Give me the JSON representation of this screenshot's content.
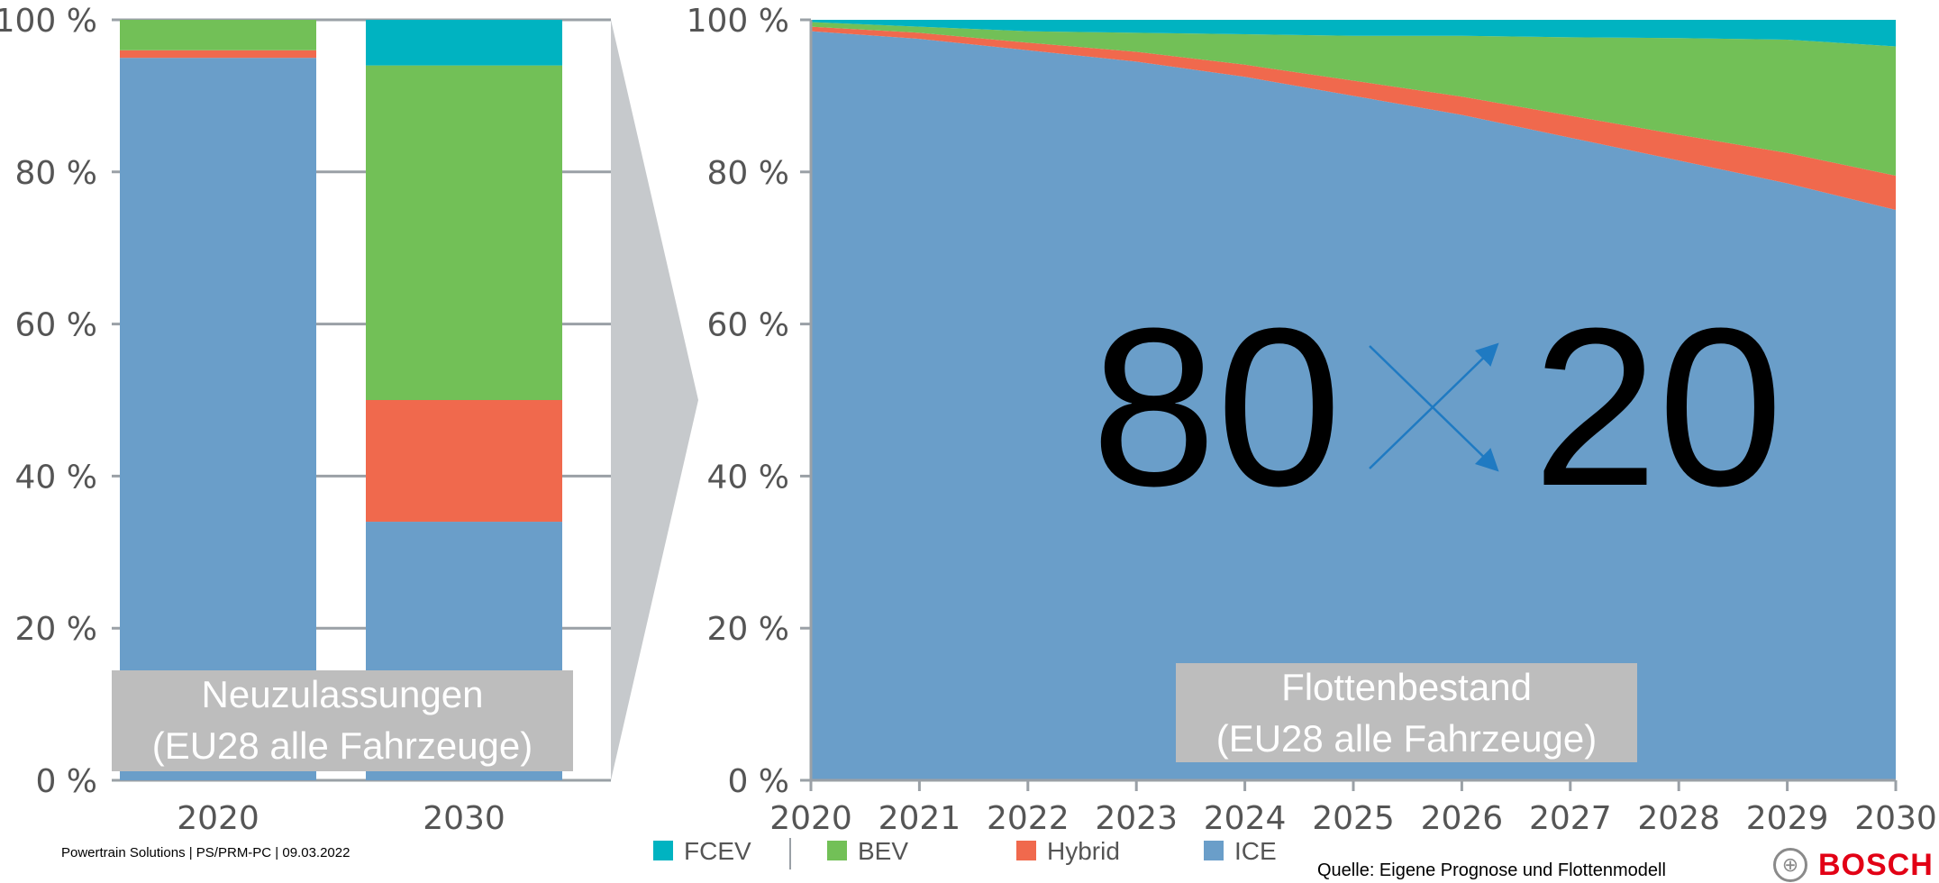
{
  "footer": {
    "left_text": "Powertrain Solutions | PS/PRM-PC | 09.03.2022",
    "source_text": "Quelle: Eigene Prognose und Flottenmodell",
    "brand": "BOSCH"
  },
  "colors": {
    "ICE": "#6a9ec9",
    "Hybrid": "#f0694d",
    "BEV": "#72c057",
    "FCEV": "#00b3c1",
    "overlay": "#bdbdbd",
    "connector": "#c6c9cc",
    "arrow": "#1f7ac2"
  },
  "center": {
    "left": "80",
    "right": "20"
  },
  "legend": [
    {
      "name": "FCEV",
      "color": "#00b3c1"
    },
    {
      "name": "BEV",
      "color": "#72c057"
    },
    {
      "name": "Hybrid",
      "color": "#f0694d"
    },
    {
      "name": "ICE",
      "color": "#6a9ec9"
    }
  ],
  "chart_data": [
    {
      "type": "bar",
      "stacked": true,
      "title": "",
      "caption_line1": "Neuzulassungen",
      "caption_line2": "(EU28 alle Fahrzeuge)",
      "categories": [
        "2020",
        "2030"
      ],
      "series": [
        {
          "name": "ICE",
          "values": [
            95,
            34
          ]
        },
        {
          "name": "Hybrid",
          "values": [
            1,
            16
          ]
        },
        {
          "name": "BEV",
          "values": [
            4,
            44
          ]
        },
        {
          "name": "FCEV",
          "values": [
            0,
            6
          ]
        }
      ],
      "ylim": [
        0,
        100
      ],
      "yticks": [
        "0 %",
        "20 %",
        "40 %",
        "60 %",
        "80 %",
        "100 %"
      ],
      "grid": true
    },
    {
      "type": "area",
      "stacked": true,
      "title": "",
      "caption_line1": "Flottenbestand",
      "caption_line2": "(EU28 alle Fahrzeuge)",
      "x": [
        "2020",
        "2021",
        "2022",
        "2023",
        "2024",
        "2025",
        "2026",
        "2027",
        "2028",
        "2029",
        "2030"
      ],
      "series": [
        {
          "name": "ICE",
          "values": [
            98.5,
            97.5,
            96,
            94.5,
            92.5,
            90,
            87.5,
            84.5,
            81.5,
            78.5,
            75
          ]
        },
        {
          "name": "Hybrid",
          "values": [
            0.6,
            0.8,
            1.0,
            1.3,
            1.6,
            2.0,
            2.4,
            2.9,
            3.4,
            4.0,
            4.5
          ]
        },
        {
          "name": "BEV",
          "values": [
            0.6,
            0.8,
            1.5,
            2.5,
            4.0,
            5.9,
            8.0,
            10.3,
            12.7,
            14.9,
            17.0
          ]
        },
        {
          "name": "FCEV",
          "values": [
            0.3,
            0.9,
            1.5,
            1.7,
            1.9,
            2.1,
            2.1,
            2.3,
            2.4,
            2.6,
            3.5
          ]
        }
      ],
      "ylim": [
        0,
        100
      ],
      "yticks": [
        "0 %",
        "20 %",
        "40 %",
        "60 %",
        "80 %",
        "100 %"
      ],
      "grid": false
    }
  ]
}
